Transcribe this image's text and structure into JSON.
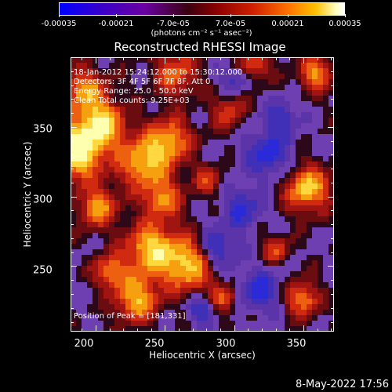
{
  "colorbar": {
    "tick_labels": [
      "-0.00035",
      "-0.00021",
      "-7.0e-05",
      "7.0e-05",
      "0.00021",
      "0.00035"
    ],
    "units": "(photons cm⁻² s⁻¹ asec⁻²)",
    "range": [
      -0.00035,
      0.00035
    ]
  },
  "chart_data": {
    "type": "heatmap",
    "title": "Reconstructed RHESSI Image",
    "xlabel": "Heliocentric X (arcsec)",
    "ylabel": "Heliocentric Y (arcsec)",
    "xlim": [
      182,
      372
    ],
    "ylim": [
      203,
      400
    ],
    "xticks": [
      200,
      250,
      300,
      350
    ],
    "yticks": [
      250,
      300,
      350
    ],
    "xtick_labels": [
      "200",
      "250",
      "300",
      "350"
    ],
    "ytick_labels": [
      "250",
      "300",
      "350"
    ],
    "annotations": [
      "18-Jan-2012 15:24:12.000 to 15:30:12.000",
      "Detectors: 3F 4F 5F 6F 7F 8F, Att 0",
      "Energy Range: 25.0 - 50.0 keV",
      "Clean     Total counts: 9.25E+03"
    ],
    "peak_label": "Position of Peak = [181,331]",
    "peak_position": [
      181,
      331
    ],
    "colormap": [
      "#1010ff",
      "#2020c0",
      "#4a2a90",
      "#6b3fbf",
      "#2a0a10",
      "#8a1010",
      "#c02020",
      "#e05010",
      "#f0a000",
      "#ffff80",
      "#ffffff"
    ]
  },
  "footer": {
    "date": "8-May-2022 17:56"
  }
}
